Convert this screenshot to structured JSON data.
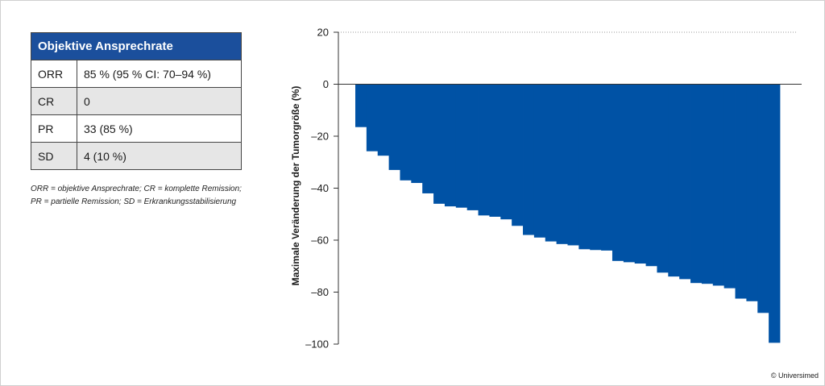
{
  "table": {
    "header": "Objektive Ansprechrate",
    "rows": [
      {
        "label": "ORR",
        "value": "85 % (95 % CI: 70–94 %)"
      },
      {
        "label": "CR",
        "value": "0"
      },
      {
        "label": "PR",
        "value": "33 (85 %)"
      },
      {
        "label": "SD",
        "value": "4 (10 %)"
      }
    ]
  },
  "footnote": {
    "line1": "ORR = objektive Ansprechrate; CR = komplette Remission;",
    "line2": "PR = partielle Remission; SD = Erkrankungsstabilisierung"
  },
  "copyright": "© Universimed",
  "colors": {
    "bar": "#0052a5",
    "header": "#1b4f9c"
  },
  "chart_data": {
    "type": "bar",
    "title": "",
    "xlabel": "",
    "ylabel": "Maximale Veränderung der Tumorgröße (%)",
    "ylim": [
      -100,
      20
    ],
    "yticks": [
      20,
      0,
      -20,
      -40,
      -60,
      -80,
      -100
    ],
    "ytick_labels": [
      "20",
      "0",
      "–20",
      "–40",
      "–60",
      "–80",
      "–100"
    ],
    "grid": "dotted reference line at 20",
    "values": [
      -16.5,
      -25.8,
      -27.5,
      -33,
      -37,
      -38,
      -42,
      -46,
      -47,
      -47.5,
      -48.5,
      -50.5,
      -51,
      -52,
      -54.5,
      -58,
      -59,
      -60.5,
      -61.5,
      -62,
      -63.5,
      -63.8,
      -64,
      -68,
      -68.5,
      -69,
      -70,
      -72.5,
      -74,
      -75,
      -76.5,
      -76.8,
      -77.5,
      -78.5,
      -82.5,
      -83.5,
      -88,
      -99.5
    ]
  }
}
